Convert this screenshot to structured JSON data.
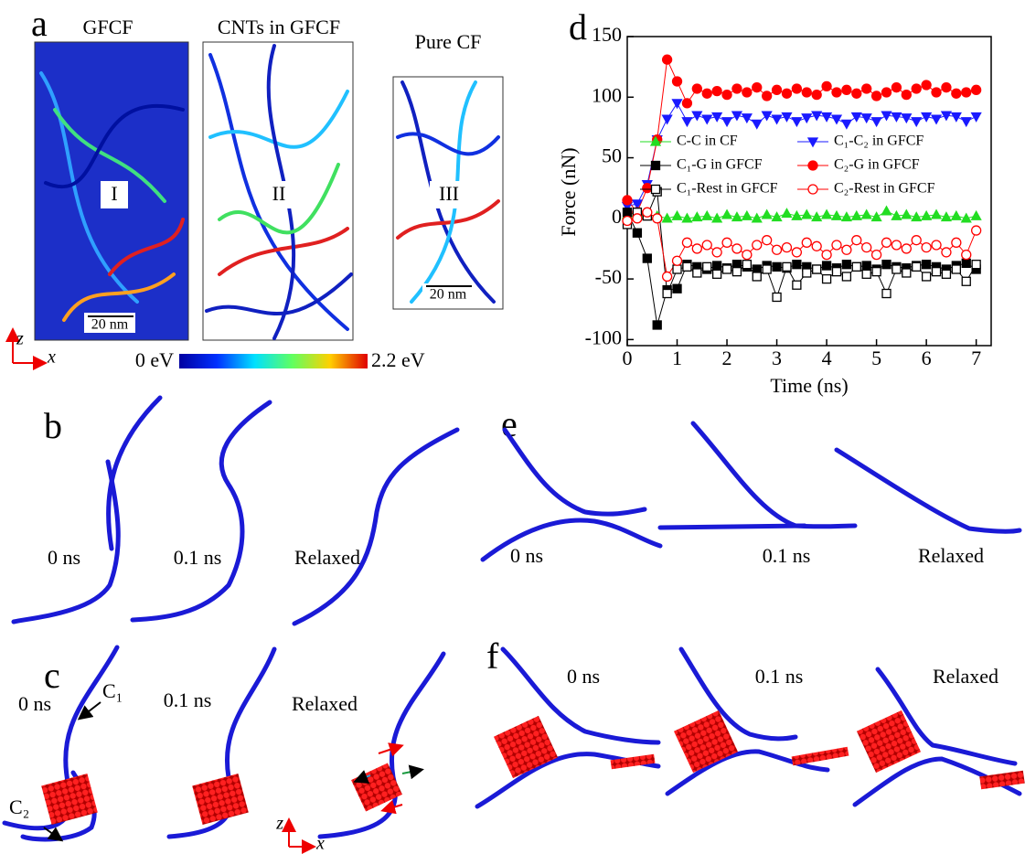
{
  "panel_a": {
    "label": "a",
    "titles": [
      "GFCF",
      "CNTs in GFCF",
      "Pure CF"
    ],
    "regions": [
      "I",
      "II",
      "III"
    ],
    "scale_bars": [
      "20 nm",
      "20 nm"
    ],
    "axes": [
      "z",
      "x"
    ],
    "colorbar": [
      "0 eV",
      "2.2 eV"
    ]
  },
  "panel_b": {
    "label": "b",
    "times": [
      "0 ns",
      "0.1 ns",
      "Relaxed"
    ]
  },
  "panel_c": {
    "label": "c",
    "times": [
      "0 ns",
      "0.1 ns",
      "Relaxed"
    ],
    "annotations": [
      "C₁",
      "C₂"
    ],
    "axes": [
      "z",
      "x"
    ]
  },
  "panel_e": {
    "label": "e",
    "times": [
      "0 ns",
      "0.1 ns",
      "Relaxed"
    ]
  },
  "panel_f": {
    "label": "f",
    "times": [
      "0 ns",
      "0.1 ns",
      "Relaxed"
    ]
  },
  "chart_data": {
    "type": "line",
    "panel_label": "d",
    "x_label": "Time (ns)",
    "y_label": "Force (nN)",
    "x": [
      0,
      0.2,
      0.4,
      0.6,
      0.8,
      1.0,
      1.2,
      1.4,
      1.6,
      1.8,
      2.0,
      2.2,
      2.4,
      2.6,
      2.8,
      3.0,
      3.2,
      3.4,
      3.6,
      3.8,
      4.0,
      4.2,
      4.4,
      4.6,
      4.8,
      5.0,
      5.2,
      5.4,
      5.6,
      5.8,
      6.0,
      6.2,
      6.4,
      6.6,
      6.8,
      7.0
    ],
    "xlim": [
      0,
      7.3
    ],
    "xticks": [
      0,
      1,
      2,
      3,
      4,
      5,
      6,
      7
    ],
    "ylim": [
      -105,
      150
    ],
    "yticks": [
      -100,
      -50,
      0,
      50,
      100,
      150
    ],
    "series": [
      {
        "name": "C-C in CF",
        "color": "#22dd22",
        "marker": "triangle-up",
        "fill": "filled",
        "values": [
          3,
          5,
          3,
          2,
          0,
          2,
          0,
          1,
          2,
          0,
          3,
          1,
          2,
          0,
          3,
          1,
          4,
          2,
          3,
          1,
          3,
          2,
          1,
          2,
          3,
          1,
          6,
          2,
          3,
          1,
          2,
          3,
          1,
          2,
          0,
          2
        ]
      },
      {
        "name": "C₁-C₂ in GFCF",
        "color": "#1a1aff",
        "marker": "triangle-down",
        "fill": "filled",
        "values": [
          10,
          12,
          28,
          65,
          82,
          95,
          80,
          85,
          82,
          84,
          80,
          85,
          83,
          78,
          85,
          82,
          84,
          80,
          83,
          85,
          84,
          82,
          78,
          84,
          83,
          80,
          85,
          84,
          83,
          80,
          84,
          82,
          85,
          84,
          80,
          84
        ]
      },
      {
        "name": "C₁-G in GFCF",
        "color": "#000000",
        "marker": "square",
        "fill": "filled",
        "values": [
          5,
          -12,
          -33,
          -88,
          -59,
          -58,
          -38,
          -40,
          -42,
          -39,
          -41,
          -38,
          -40,
          -42,
          -39,
          -40,
          -41,
          -38,
          -40,
          -42,
          -39,
          -41,
          -38,
          -40,
          -39,
          -42,
          -38,
          -40,
          -41,
          -39,
          -38,
          -40,
          -42,
          -39,
          -37,
          -42
        ]
      },
      {
        "name": "C₂-G in GFCF",
        "color": "#ff0000",
        "marker": "circle",
        "fill": "filled",
        "values": [
          15,
          5,
          25,
          65,
          131,
          113,
          95,
          107,
          103,
          105,
          102,
          107,
          104,
          108,
          101,
          106,
          103,
          107,
          104,
          102,
          109,
          104,
          106,
          103,
          107,
          101,
          104,
          108,
          102,
          107,
          110,
          104,
          108,
          103,
          104,
          106
        ]
      },
      {
        "name": "C₁-Rest in GFCF",
        "color": "#000000",
        "marker": "square",
        "fill": "open",
        "values": [
          -5,
          5,
          2,
          22,
          -62,
          -42,
          -40,
          -45,
          -40,
          -46,
          -42,
          -44,
          -38,
          -48,
          -42,
          -65,
          -40,
          -55,
          -45,
          -42,
          -50,
          -44,
          -48,
          -40,
          -46,
          -44,
          -62,
          -42,
          -45,
          -40,
          -48,
          -44,
          -46,
          -42,
          -52,
          -38
        ]
      },
      {
        "name": "C₂-Rest in GFCF",
        "color": "#ff0000",
        "marker": "circle",
        "fill": "open",
        "values": [
          -2,
          0,
          5,
          0,
          -48,
          -35,
          -20,
          -25,
          -22,
          -28,
          -20,
          -25,
          -30,
          -22,
          -18,
          -26,
          -24,
          -28,
          -20,
          -23,
          -30,
          -22,
          -26,
          -18,
          -24,
          -30,
          -20,
          -22,
          -25,
          -18,
          -24,
          -22,
          -28,
          -20,
          -30,
          -10
        ]
      }
    ]
  }
}
